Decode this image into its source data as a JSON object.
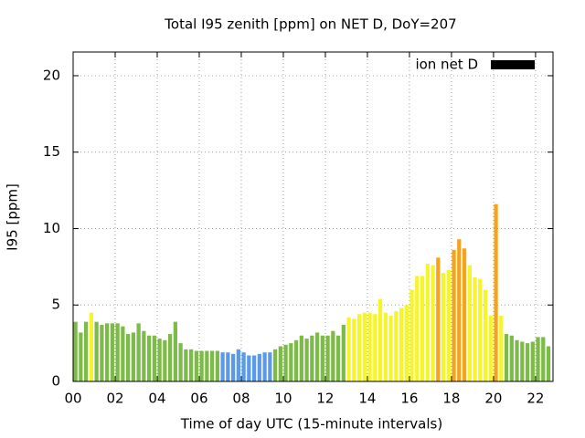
{
  "chart_data": {
    "type": "bar",
    "title": "Total I95 zenith [ppm] on NET D, DoY=207",
    "xlabel": "Time of day UTC (15-minute intervals)",
    "ylabel": "I95 [ppm]",
    "xlim": [
      0,
      22.83
    ],
    "ylim": [
      0,
      21.55
    ],
    "xticks": [
      {
        "value": 0,
        "label": "00"
      },
      {
        "value": 2,
        "label": "02"
      },
      {
        "value": 4,
        "label": "04"
      },
      {
        "value": 6,
        "label": "06"
      },
      {
        "value": 8,
        "label": "08"
      },
      {
        "value": 10,
        "label": "10"
      },
      {
        "value": 12,
        "label": "12"
      },
      {
        "value": 14,
        "label": "14"
      },
      {
        "value": 16,
        "label": "16"
      },
      {
        "value": 18,
        "label": "18"
      },
      {
        "value": 20,
        "label": "20"
      },
      {
        "value": 22,
        "label": "22"
      }
    ],
    "yticks": [
      0,
      5,
      10,
      15,
      20
    ],
    "grid": true,
    "legend": "top-right",
    "x": [
      0,
      0.25,
      0.5,
      0.75,
      1,
      1.25,
      1.5,
      1.75,
      2,
      2.25,
      2.5,
      2.75,
      3,
      3.25,
      3.5,
      3.75,
      4,
      4.25,
      4.5,
      4.75,
      5,
      5.25,
      5.5,
      5.75,
      6,
      6.25,
      6.5,
      6.75,
      7,
      7.25,
      7.5,
      7.75,
      8,
      8.25,
      8.5,
      8.75,
      9,
      9.25,
      9.5,
      9.75,
      10,
      10.25,
      10.5,
      10.75,
      11,
      11.25,
      11.5,
      11.75,
      12,
      12.25,
      12.5,
      12.75,
      13,
      13.25,
      13.5,
      13.75,
      14,
      14.25,
      14.5,
      14.75,
      15,
      15.25,
      15.5,
      15.75,
      16,
      16.25,
      16.5,
      16.75,
      17,
      17.25,
      17.5,
      17.75,
      18,
      18.25,
      18.5,
      18.75,
      19,
      19.25,
      19.5,
      19.75,
      20,
      20.25,
      20.5,
      20.75,
      21,
      21.25,
      21.5,
      21.75,
      22,
      22.25,
      22.5
    ],
    "series": [
      {
        "name": "ion net D",
        "color": "#000000",
        "values": [
          3.9,
          3.2,
          3.9,
          4.5,
          3.9,
          3.7,
          3.8,
          3.8,
          3.8,
          3.6,
          3.1,
          3.2,
          3.8,
          3.3,
          3.0,
          3.0,
          2.8,
          2.7,
          3.1,
          3.9,
          2.5,
          2.1,
          2.1,
          2.0,
          2.0,
          2.0,
          2.0,
          2.0,
          1.9,
          1.9,
          1.8,
          2.1,
          1.9,
          1.7,
          1.7,
          1.8,
          1.9,
          1.9,
          2.1,
          2.3,
          2.4,
          2.5,
          2.7,
          3.0,
          2.8,
          3.0,
          3.2,
          3.0,
          3.0,
          3.3,
          3.0,
          3.7,
          4.2,
          4.1,
          4.4,
          4.5,
          4.5,
          4.4,
          5.4,
          4.5,
          4.3,
          4.6,
          4.8,
          5.0,
          6.0,
          6.9,
          6.9,
          7.7,
          7.6,
          8.1,
          7.1,
          7.3,
          8.6,
          9.3,
          8.7,
          7.6,
          6.8,
          6.7,
          6.0,
          4.3,
          11.6,
          4.3,
          3.1,
          3.0,
          2.7,
          2.6,
          2.5,
          2.6,
          2.9,
          2.9,
          2.3
        ],
        "colors": [
          "#7cbb48",
          "#7cbb48",
          "#7cbb48",
          "#f5f52a",
          "#7cbb48",
          "#7cbb48",
          "#7cbb48",
          "#7cbb48",
          "#7cbb48",
          "#7cbb48",
          "#7cbb48",
          "#7cbb48",
          "#7cbb48",
          "#7cbb48",
          "#7cbb48",
          "#7cbb48",
          "#7cbb48",
          "#7cbb48",
          "#7cbb48",
          "#7cbb48",
          "#7cbb48",
          "#7cbb48",
          "#7cbb48",
          "#7cbb48",
          "#7cbb48",
          "#7cbb48",
          "#7cbb48",
          "#7cbb48",
          "#5b9ae8",
          "#5b9ae8",
          "#5b9ae8",
          "#5b9ae8",
          "#5b9ae8",
          "#5b9ae8",
          "#5b9ae8",
          "#5b9ae8",
          "#5b9ae8",
          "#5b9ae8",
          "#7cbb48",
          "#7cbb48",
          "#7cbb48",
          "#7cbb48",
          "#7cbb48",
          "#7cbb48",
          "#7cbb48",
          "#7cbb48",
          "#7cbb48",
          "#7cbb48",
          "#7cbb48",
          "#7cbb48",
          "#7cbb48",
          "#7cbb48",
          "#f5f52a",
          "#f5f52a",
          "#f5f52a",
          "#f5f52a",
          "#f5f52a",
          "#f5f52a",
          "#f5f52a",
          "#f5f52a",
          "#f5f52a",
          "#f5f52a",
          "#f5f52a",
          "#f5f52a",
          "#f5f52a",
          "#f5f52a",
          "#f5f52a",
          "#f5f52a",
          "#f5f52a",
          "#f5a31a",
          "#f5f52a",
          "#f5f52a",
          "#f5a31a",
          "#f5a31a",
          "#f5a31a",
          "#f5f52a",
          "#f5f52a",
          "#f5f52a",
          "#f5f52a",
          "#f5f52a",
          "#f5a31a",
          "#f5f52a",
          "#7cbb48",
          "#7cbb48",
          "#7cbb48",
          "#7cbb48",
          "#7cbb48",
          "#7cbb48",
          "#7cbb48",
          "#7cbb48",
          "#7cbb48"
        ]
      }
    ]
  }
}
